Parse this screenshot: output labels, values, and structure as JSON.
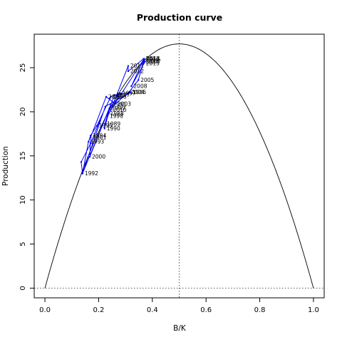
{
  "chart_data": {
    "type": "line",
    "title": "Production curve",
    "xlabel": "B/K",
    "ylabel": "Production",
    "xlim": [
      -0.04,
      1.04
    ],
    "ylim": [
      -1.1,
      28.8
    ],
    "x_ticks": [
      "0.0",
      "0.2",
      "0.4",
      "0.6",
      "0.8",
      "1.0"
    ],
    "x_tick_values": [
      0,
      0.2,
      0.4,
      0.6,
      0.8,
      1.0
    ],
    "y_ticks": [
      "0",
      "5",
      "10",
      "15",
      "20",
      "25"
    ],
    "y_tick_values": [
      0,
      5,
      10,
      15,
      20,
      25
    ],
    "grid": false,
    "curve": {
      "type": "parabola",
      "max_production": 27.7,
      "x_at_max": 0.5,
      "x_range": [
        0,
        1
      ]
    },
    "reference_lines": {
      "vertical_x": 0.5,
      "horizontal_y": 0
    },
    "colors": {
      "curve": "#000000",
      "trajectory": "#0000ff",
      "reference": "#555555",
      "label": "#000000"
    },
    "series": [
      {
        "points": [
          {
            "label": "",
            "x": 0.205,
            "y": 19.0
          },
          {
            "label": "",
            "x": 0.17,
            "y": 16.4
          },
          {
            "label": "",
            "x": 0.135,
            "y": 14.3
          },
          {
            "label": "",
            "x": 0.14,
            "y": 13.0
          },
          {
            "label": "",
            "x": 0.16,
            "y": 14.8
          },
          {
            "label": "",
            "x": 0.225,
            "y": 20.6
          },
          {
            "label": "1986",
            "x": 0.318,
            "y": 22.2
          },
          {
            "label": "",
            "x": 0.283,
            "y": 22.0
          },
          {
            "label": "1987",
            "x": 0.258,
            "y": 21.9
          },
          {
            "label": "1988",
            "x": 0.235,
            "y": 19.8
          },
          {
            "label": "1989",
            "x": 0.223,
            "y": 18.6
          },
          {
            "label": "1990",
            "x": 0.222,
            "y": 18.1
          },
          {
            "label": "1991",
            "x": 0.245,
            "y": 20.8
          },
          {
            "label": "1992",
            "x": 0.14,
            "y": 13.0
          },
          {
            "label": "1993",
            "x": 0.162,
            "y": 16.6
          },
          {
            "label": "1994",
            "x": 0.17,
            "y": 17.3
          },
          {
            "label": "1995",
            "x": 0.193,
            "y": 18.4
          },
          {
            "label": "1996",
            "x": 0.245,
            "y": 21.7
          },
          {
            "label": "1997",
            "x": 0.28,
            "y": 22.1
          },
          {
            "label": "1998",
            "x": 0.233,
            "y": 19.5
          },
          {
            "label": "1999",
            "x": 0.24,
            "y": 20.4
          },
          {
            "label": "2000",
            "x": 0.167,
            "y": 14.9
          },
          {
            "label": "2001",
            "x": 0.17,
            "y": 17.1
          },
          {
            "label": "2002",
            "x": 0.228,
            "y": 21.7
          },
          {
            "label": "2003",
            "x": 0.262,
            "y": 20.9
          },
          {
            "label": "2004",
            "x": 0.312,
            "y": 22.2
          },
          {
            "label": "2005",
            "x": 0.348,
            "y": 23.6
          },
          {
            "label": "2006",
            "x": 0.367,
            "y": 25.7
          },
          {
            "label": "2007",
            "x": 0.373,
            "y": 25.7
          },
          {
            "label": "2008",
            "x": 0.322,
            "y": 22.9
          },
          {
            "label": "2009",
            "x": 0.367,
            "y": 25.9
          },
          {
            "label": "2010",
            "x": 0.245,
            "y": 20.2
          },
          {
            "label": "2011",
            "x": 0.31,
            "y": 25.2
          },
          {
            "label": "2012",
            "x": 0.31,
            "y": 24.6
          },
          {
            "label": "2013",
            "x": 0.367,
            "y": 26.0
          },
          {
            "label": "2014",
            "x": 0.37,
            "y": 26.0
          },
          {
            "label": "2015",
            "x": 0.368,
            "y": 25.5
          }
        ]
      }
    ]
  }
}
